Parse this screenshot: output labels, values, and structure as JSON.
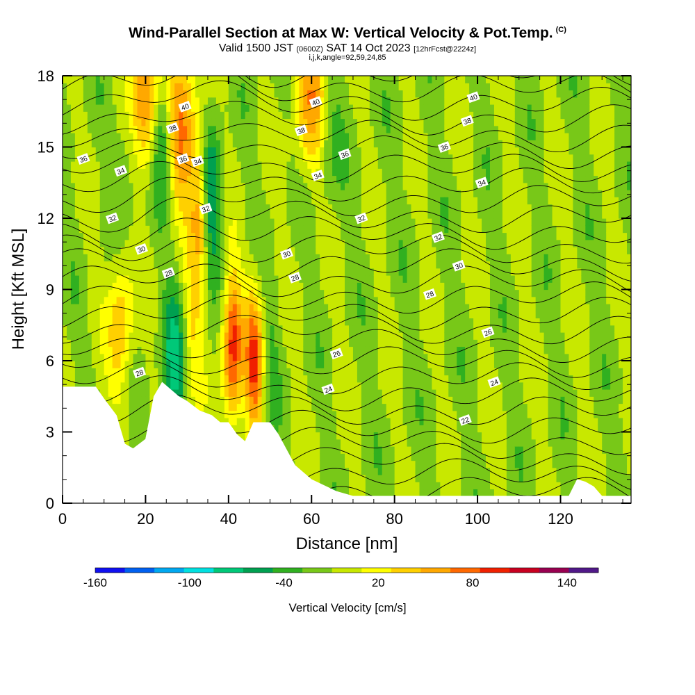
{
  "title": {
    "main": "Wind-Parallel Section at Max W: Vertical Velocity & Pot.Temp.",
    "main_tag": "(C)",
    "valid_prefix": "Valid 1500 JST",
    "valid_z": "(0600Z)",
    "valid_date": "SAT 14 Oct 2023",
    "valid_fcst": "[12hrFcst@2224z]",
    "params": "i,j,k,angle=92,59,24,85"
  },
  "chart_data": {
    "type": "heatmap",
    "xlabel": "Distance [nm]",
    "ylabel": "Height [Kft MSL]",
    "xlim": [
      0,
      137
    ],
    "ylim": [
      0,
      18
    ],
    "x_ticks": [
      0,
      20,
      40,
      60,
      80,
      100,
      120
    ],
    "y_ticks": [
      0,
      3,
      6,
      9,
      12,
      15,
      18
    ],
    "colorbar": {
      "label": "Vertical Velocity [cm/s]",
      "tick_labels": [
        "-160",
        "-100",
        "-40",
        "20",
        "80",
        "140"
      ],
      "tick_values": [
        -160,
        -100,
        -40,
        20,
        80,
        140
      ],
      "range": [
        -160,
        160
      ],
      "bin_width": 20,
      "colors": [
        "#1010f0",
        "#0060f0",
        "#00a8f0",
        "#00e0e0",
        "#00c878",
        "#00a050",
        "#30b020",
        "#78c818",
        "#c8e800",
        "#ffff00",
        "#ffd000",
        "#ffa800",
        "#ff6800",
        "#f02000",
        "#c80020",
        "#980050",
        "#501888"
      ]
    },
    "terrain_kft": [
      [
        0,
        4.9
      ],
      [
        8,
        4.9
      ],
      [
        10,
        4.4
      ],
      [
        13,
        3.7
      ],
      [
        15,
        2.5
      ],
      [
        17,
        2.3
      ],
      [
        20,
        2.7
      ],
      [
        22,
        4.5
      ],
      [
        24,
        5.1
      ],
      [
        26,
        4.8
      ],
      [
        28,
        4.5
      ],
      [
        30,
        4.3
      ],
      [
        33,
        3.9
      ],
      [
        36,
        3.7
      ],
      [
        38,
        3.4
      ],
      [
        40,
        3.4
      ],
      [
        42,
        2.9
      ],
      [
        44,
        2.6
      ],
      [
        46,
        3.4
      ],
      [
        50,
        3.4
      ],
      [
        52,
        2.9
      ],
      [
        56,
        1.6
      ],
      [
        60,
        1.0
      ],
      [
        66,
        0.5
      ],
      [
        70,
        0.3
      ],
      [
        122,
        0.3
      ],
      [
        124,
        1.0
      ],
      [
        126,
        0.9
      ],
      [
        128,
        0.7
      ],
      [
        130,
        0.3
      ],
      [
        137,
        0.3
      ]
    ],
    "updrafts": [
      {
        "x": 20,
        "y": 17.5,
        "w": 5,
        "peak_cm_s": 100
      },
      {
        "x": 29,
        "y": 15.5,
        "w": 4,
        "peak_cm_s": 80
      },
      {
        "x": 14,
        "y": 7.5,
        "w": 3,
        "peak_cm_s": 60
      },
      {
        "x": 41,
        "y": 6.5,
        "w": 2.5,
        "peak_cm_s": 110
      },
      {
        "x": 46,
        "y": 6.0,
        "w": 2.5,
        "peak_cm_s": 110
      },
      {
        "x": 60,
        "y": 17.0,
        "w": 4,
        "peak_cm_s": 70
      },
      {
        "x": 33,
        "y": 12.0,
        "w": 2,
        "peak_cm_s": 60
      },
      {
        "x": 31,
        "y": 7.0,
        "w": 2.5,
        "peak_cm_s": 40
      }
    ],
    "downdrafts": [
      {
        "x": 24,
        "y": 16.0,
        "w": 2.5,
        "min_cm_s": -80
      },
      {
        "x": 16,
        "y": 15.5,
        "w": 3,
        "min_cm_s": -40
      },
      {
        "x": 36,
        "y": 13.0,
        "w": 2.5,
        "min_cm_s": -60
      },
      {
        "x": 27,
        "y": 6.0,
        "w": 3,
        "min_cm_s": -60
      },
      {
        "x": 44,
        "y": 6.0,
        "w": 2,
        "min_cm_s": -30
      },
      {
        "x": 50,
        "y": 6.0,
        "w": 2,
        "min_cm_s": -20
      },
      {
        "x": 64,
        "y": 15.5,
        "w": 3,
        "min_cm_s": -30
      }
    ],
    "isentropes_label_values": [
      22,
      24,
      26,
      28,
      30,
      32,
      34,
      36,
      38,
      40
    ],
    "isentrope_labels": [
      {
        "x": 5,
        "y": 14.5,
        "text": "36"
      },
      {
        "x": 14,
        "y": 14.0,
        "text": "34"
      },
      {
        "x": 12,
        "y": 12.0,
        "text": "32"
      },
      {
        "x": 19,
        "y": 10.7,
        "text": "30"
      },
      {
        "x": 25.5,
        "y": 9.7,
        "text": "28"
      },
      {
        "x": 18.5,
        "y": 5.5,
        "text": "28"
      },
      {
        "x": 29,
        "y": 14.5,
        "text": "36"
      },
      {
        "x": 26.5,
        "y": 15.8,
        "text": "38"
      },
      {
        "x": 29.5,
        "y": 16.7,
        "text": "40"
      },
      {
        "x": 32.5,
        "y": 14.4,
        "text": "34"
      },
      {
        "x": 34.5,
        "y": 12.4,
        "text": "32"
      },
      {
        "x": 54,
        "y": 10.5,
        "text": "30"
      },
      {
        "x": 56,
        "y": 9.5,
        "text": "28"
      },
      {
        "x": 57.5,
        "y": 15.7,
        "text": "38"
      },
      {
        "x": 61,
        "y": 16.9,
        "text": "40"
      },
      {
        "x": 61.5,
        "y": 13.8,
        "text": "34"
      },
      {
        "x": 68,
        "y": 14.7,
        "text": "36"
      },
      {
        "x": 72,
        "y": 12.0,
        "text": "32"
      },
      {
        "x": 64,
        "y": 4.8,
        "text": "24"
      },
      {
        "x": 66,
        "y": 6.3,
        "text": "26"
      },
      {
        "x": 88.5,
        "y": 8.8,
        "text": "28"
      },
      {
        "x": 90.5,
        "y": 11.2,
        "text": "32"
      },
      {
        "x": 95.5,
        "y": 10.0,
        "text": "30"
      },
      {
        "x": 92,
        "y": 15.0,
        "text": "36"
      },
      {
        "x": 101,
        "y": 13.5,
        "text": "34"
      },
      {
        "x": 97.5,
        "y": 16.1,
        "text": "38"
      },
      {
        "x": 99,
        "y": 17.1,
        "text": "40"
      },
      {
        "x": 102.5,
        "y": 7.2,
        "text": "26"
      },
      {
        "x": 104,
        "y": 5.1,
        "text": "24"
      },
      {
        "x": 97,
        "y": 3.5,
        "text": "22"
      }
    ]
  }
}
